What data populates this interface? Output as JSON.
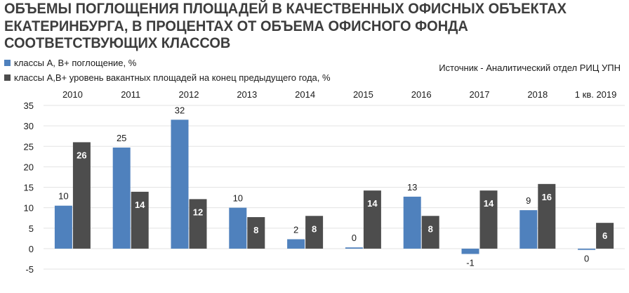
{
  "title": "ОБЪЕМЫ ПОГЛОЩЕНИЯ ПЛОЩАДЕЙ В  КАЧЕСТВЕННЫХ ОФИСНЫХ ОБЪЕКТАХ ЕКАТЕРИНБУРГА, В ПРОЦЕНТАХ ОТ ОБЪЕМА ОФИСНОГО ФОНДА СООТВЕТСТВУЮЩИХ КЛАССОВ",
  "source": "Источник - Аналитический отдел РИЦ УПН",
  "colors": {
    "series1": "#4f81bd",
    "series2": "#4d4d4d",
    "grid": "#e3e3e3"
  },
  "chart_data": {
    "type": "bar",
    "title": "ОБЪЕМЫ ПОГЛОЩЕНИЯ ПЛОЩАДЕЙ В  КАЧЕСТВЕННЫХ ОФИСНЫХ ОБЪЕКТАХ ЕКАТЕРИНБУРГА, В ПРОЦЕНТАХ ОТ ОБЪЕМА ОФИСНОГО ФОНДА СООТВЕТСТВУЮЩИХ КЛАССОВ",
    "categories": [
      "2010",
      "2011",
      "2012",
      "2013",
      "2014",
      "2015",
      "2016",
      "2017",
      "2018",
      "1 кв. 2019"
    ],
    "series": [
      {
        "name": "классы А, В+ поглощение, %",
        "values": [
          10.5,
          24.7,
          31.5,
          10,
          2.3,
          0.3,
          12.7,
          -1.3,
          9.4,
          -0.3
        ],
        "labels": [
          "10",
          "25",
          "32",
          "10",
          "2",
          "0",
          "13",
          "-1",
          "9",
          "0"
        ]
      },
      {
        "name": "классы А,В+ уровень вакантных площадей на конец предыдущего года, %",
        "values": [
          26,
          13.9,
          12.1,
          7.7,
          8,
          14.2,
          8,
          14.2,
          15.8,
          6.3
        ],
        "labels": [
          "26",
          "14",
          "12",
          "8",
          "8",
          "14",
          "8",
          "14",
          "16",
          "6"
        ]
      }
    ],
    "yticks": [
      "35",
      "30",
      "25",
      "20",
      "15",
      "10",
      "5",
      "0",
      "-5"
    ],
    "ylim": [
      -5,
      35
    ],
    "grid": true,
    "legend": "top-left",
    "category_axis": "top"
  }
}
